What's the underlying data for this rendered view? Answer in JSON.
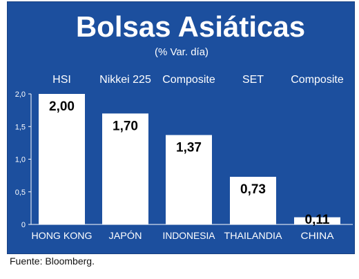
{
  "chart_data": {
    "type": "bar",
    "title": "Bolsas Asiáticas",
    "subtitle": "(% Var. día)",
    "categories": [
      "HONG KONG",
      "JAPÓN",
      "INDONESIA",
      "THAILANDIA",
      "CHINA"
    ],
    "index_names": [
      "HSI",
      "Nikkei 225",
      "Composite",
      "SET",
      "Composite"
    ],
    "values": [
      2.0,
      1.7,
      1.37,
      0.73,
      0.11
    ],
    "value_labels": [
      "2,00",
      "1,70",
      "1,37",
      "0,73",
      "0,11"
    ],
    "y_ticks": [
      "0",
      "0,5",
      "1,0",
      "1,5",
      "2,0"
    ],
    "y_tick_values": [
      0,
      0.5,
      1.0,
      1.5,
      2.0
    ],
    "ylim": [
      0,
      2.0
    ],
    "grid": false,
    "colors": {
      "background": "#1c4f9e",
      "bar": "#ffffff",
      "text": "#ffffff",
      "value_text": "#000000"
    }
  },
  "source": "Fuente: Bloomberg."
}
